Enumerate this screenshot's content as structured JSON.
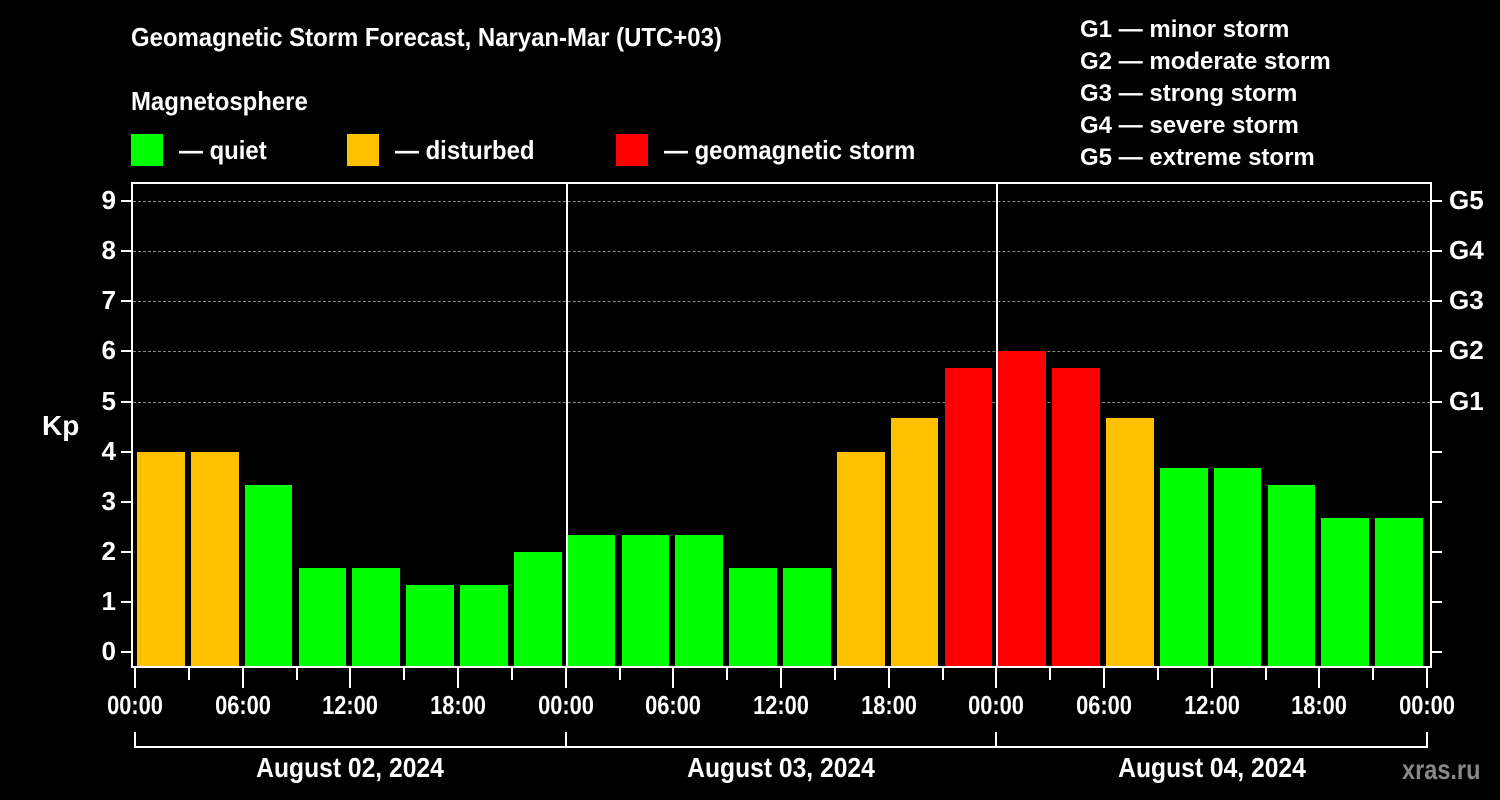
{
  "header": {
    "title": "Geomagnetic Storm Forecast, Naryan-Mar (UTC+03)",
    "subtitle": "Magnetosphere"
  },
  "legend": [
    {
      "label": "— quiet",
      "color": "#00ff00"
    },
    {
      "label": "— disturbed",
      "color": "#ffc000"
    },
    {
      "label": "— geomagnetic storm",
      "color": "#ff0000"
    }
  ],
  "storm_scale": [
    "G1 — minor storm",
    "G2 — moderate storm",
    "G3 — strong storm",
    "G4 — severe storm",
    "G5 — extreme storm"
  ],
  "watermark": "xras.ru",
  "chart_data": {
    "type": "bar",
    "title": "Geomagnetic Storm Forecast, Naryan-Mar (UTC+03)",
    "subtitle": "Magnetosphere",
    "xlabel": "",
    "ylabel": "Kp",
    "ylim": [
      0,
      9
    ],
    "yticks": [
      0,
      1,
      2,
      3,
      4,
      5,
      6,
      7,
      8,
      9
    ],
    "right_axis_labels": [
      {
        "value": 5,
        "label": "G1"
      },
      {
        "value": 6,
        "label": "G2"
      },
      {
        "value": 7,
        "label": "G3"
      },
      {
        "value": 8,
        "label": "G4"
      },
      {
        "value": 9,
        "label": "G5"
      }
    ],
    "grid": "dashed horizontal at Kp 5–9",
    "x_tick_labels": [
      "00:00",
      "06:00",
      "12:00",
      "18:00",
      "00:00",
      "06:00",
      "12:00",
      "18:00",
      "00:00",
      "06:00",
      "12:00",
      "18:00",
      "00:00"
    ],
    "days": [
      "August 02, 2024",
      "August 03, 2024",
      "August 04, 2024"
    ],
    "categories": [
      "Aug 02 00-03",
      "Aug 02 03-06",
      "Aug 02 06-09",
      "Aug 02 09-12",
      "Aug 02 12-15",
      "Aug 02 15-18",
      "Aug 02 18-21",
      "Aug 02 21-24",
      "Aug 03 00-03",
      "Aug 03 03-06",
      "Aug 03 06-09",
      "Aug 03 09-12",
      "Aug 03 12-15",
      "Aug 03 15-18",
      "Aug 03 18-21",
      "Aug 03 21-24",
      "Aug 04 00-03",
      "Aug 04 03-06",
      "Aug 04 06-09",
      "Aug 04 09-12",
      "Aug 04 12-15",
      "Aug 04 15-18",
      "Aug 04 18-21",
      "Aug 04 21-24"
    ],
    "values": [
      4.0,
      4.0,
      3.33,
      1.67,
      1.67,
      1.33,
      1.33,
      2.0,
      2.33,
      2.33,
      2.33,
      1.67,
      1.67,
      4.0,
      4.67,
      5.67,
      6.0,
      5.67,
      4.67,
      3.67,
      3.67,
      3.33,
      2.67,
      2.67
    ],
    "status": [
      "disturbed",
      "disturbed",
      "quiet",
      "quiet",
      "quiet",
      "quiet",
      "quiet",
      "quiet",
      "quiet",
      "quiet",
      "quiet",
      "quiet",
      "quiet",
      "disturbed",
      "disturbed",
      "storm",
      "storm",
      "storm",
      "disturbed",
      "quiet",
      "quiet",
      "quiet",
      "quiet",
      "quiet"
    ],
    "colors": {
      "quiet": "#00ff00",
      "disturbed": "#ffc000",
      "storm": "#ff0000"
    },
    "legend": [
      "quiet",
      "disturbed",
      "geomagnetic storm"
    ],
    "legend_position": "top"
  }
}
